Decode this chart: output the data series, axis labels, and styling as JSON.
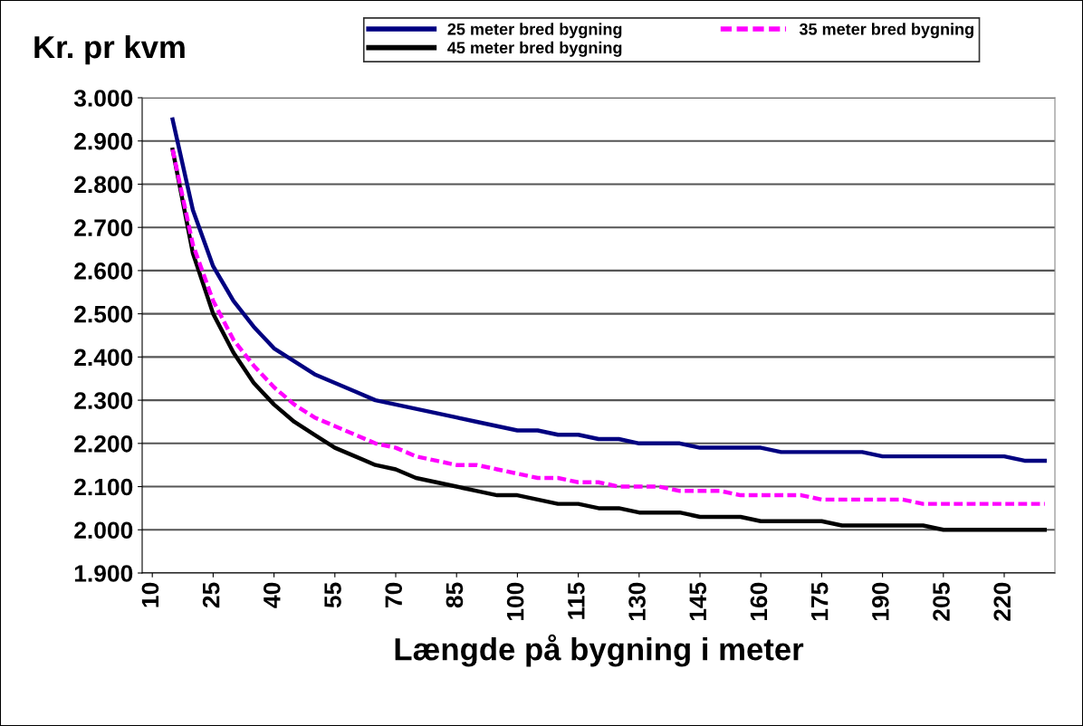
{
  "chart_data": {
    "type": "line",
    "ylabel": "Kr. pr kvm",
    "xlabel": "Længde på bygning i meter",
    "categories": [
      "10",
      null,
      null,
      "25",
      null,
      null,
      "40",
      null,
      null,
      "55",
      null,
      null,
      "70",
      null,
      null,
      "85",
      null,
      null,
      "100",
      null,
      null,
      "115",
      null,
      null,
      "130",
      null,
      null,
      "145",
      null,
      null,
      "160",
      null,
      null,
      "175",
      null,
      null,
      "190",
      null,
      null,
      "205",
      null,
      null,
      "220",
      null,
      null
    ],
    "series": [
      {
        "name": "25 meter bred bygning",
        "color": "#000080",
        "line_style": "solid",
        "values": [
          null,
          2950,
          2740,
          2610,
          2530,
          2470,
          2420,
          2390,
          2360,
          2340,
          2320,
          2300,
          2290,
          2280,
          2270,
          2260,
          2250,
          2240,
          2230,
          2230,
          2220,
          2220,
          2210,
          2210,
          2200,
          2200,
          2200,
          2190,
          2190,
          2190,
          2190,
          2180,
          2180,
          2180,
          2180,
          2180,
          2170,
          2170,
          2170,
          2170,
          2170,
          2170,
          2170,
          2160,
          2160
        ]
      },
      {
        "name": "35 meter bred bygning",
        "color": "#ff00ff",
        "line_style": "dashed",
        "values": [
          null,
          2880,
          2660,
          2530,
          2440,
          2380,
          2330,
          2290,
          2260,
          2240,
          2220,
          2200,
          2190,
          2170,
          2160,
          2150,
          2150,
          2140,
          2130,
          2120,
          2120,
          2110,
          2110,
          2100,
          2100,
          2100,
          2090,
          2090,
          2090,
          2080,
          2080,
          2080,
          2080,
          2070,
          2070,
          2070,
          2070,
          2070,
          2060,
          2060,
          2060,
          2060,
          2060,
          2060,
          2060
        ]
      },
      {
        "name": "45 meter bred bygning",
        "color": "#000000",
        "line_style": "solid",
        "values": [
          null,
          2880,
          2640,
          2500,
          2410,
          2340,
          2290,
          2250,
          2220,
          2190,
          2170,
          2150,
          2140,
          2120,
          2110,
          2100,
          2090,
          2080,
          2080,
          2070,
          2060,
          2060,
          2050,
          2050,
          2040,
          2040,
          2040,
          2030,
          2030,
          2030,
          2020,
          2020,
          2020,
          2020,
          2010,
          2010,
          2010,
          2010,
          2010,
          2000,
          2000,
          2000,
          2000,
          2000,
          2000
        ]
      }
    ],
    "ylim": [
      1900,
      3000
    ],
    "yticks": [
      {
        "value": 1900,
        "label": "1.900"
      },
      {
        "value": 2000,
        "label": "2.000"
      },
      {
        "value": 2100,
        "label": "2.100"
      },
      {
        "value": 2200,
        "label": "2.200"
      },
      {
        "value": 2300,
        "label": "2.300"
      },
      {
        "value": 2400,
        "label": "2.400"
      },
      {
        "value": 2500,
        "label": "2.500"
      },
      {
        "value": 2600,
        "label": "2.600"
      },
      {
        "value": 2700,
        "label": "2.700"
      },
      {
        "value": 2800,
        "label": "2.800"
      },
      {
        "value": 2900,
        "label": "2.900"
      },
      {
        "value": 3000,
        "label": "3.000"
      }
    ],
    "grid": "y",
    "legend": "top",
    "marker": "none"
  }
}
